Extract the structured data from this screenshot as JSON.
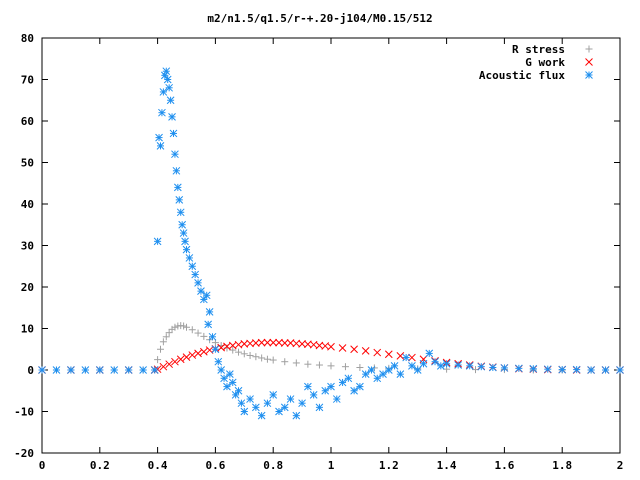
{
  "chart_data": {
    "type": "scatter",
    "title": "m2/n1.5/q1.5/r-+.20-j104/M0.15/512",
    "xlabel": "",
    "ylabel": "",
    "xlim": [
      0,
      2
    ],
    "ylim": [
      -20,
      80
    ],
    "xticks": [
      "0",
      "0.2",
      "0.4",
      "0.6",
      "0.8",
      "1",
      "1.2",
      "1.4",
      "1.6",
      "1.8",
      "2"
    ],
    "yticks": [
      "-20",
      "-10",
      "0",
      "10",
      "20",
      "30",
      "40",
      "50",
      "60",
      "70",
      "80"
    ],
    "grid": false,
    "legend_position": "top-right",
    "series": [
      {
        "name": "R stress",
        "marker": "plus",
        "color": "#a0a0a0",
        "points": [
          [
            0.0,
            0
          ],
          [
            0.05,
            0
          ],
          [
            0.1,
            0
          ],
          [
            0.15,
            0
          ],
          [
            0.2,
            0
          ],
          [
            0.25,
            0
          ],
          [
            0.3,
            0
          ],
          [
            0.35,
            0
          ],
          [
            0.39,
            0
          ],
          [
            0.4,
            2.5
          ],
          [
            0.41,
            5
          ],
          [
            0.42,
            6.8
          ],
          [
            0.43,
            8
          ],
          [
            0.44,
            9
          ],
          [
            0.45,
            9.8
          ],
          [
            0.46,
            10.3
          ],
          [
            0.47,
            10.6
          ],
          [
            0.48,
            10.7
          ],
          [
            0.49,
            10.6
          ],
          [
            0.5,
            10.3
          ],
          [
            0.52,
            9.7
          ],
          [
            0.54,
            8.9
          ],
          [
            0.56,
            8.1
          ],
          [
            0.58,
            7.3
          ],
          [
            0.6,
            6.6
          ],
          [
            0.62,
            5.9
          ],
          [
            0.64,
            5.3
          ],
          [
            0.66,
            4.8
          ],
          [
            0.68,
            4.3
          ],
          [
            0.7,
            3.9
          ],
          [
            0.72,
            3.5
          ],
          [
            0.74,
            3.2
          ],
          [
            0.76,
            2.9
          ],
          [
            0.78,
            2.6
          ],
          [
            0.8,
            2.4
          ],
          [
            0.84,
            2.0
          ],
          [
            0.88,
            1.7
          ],
          [
            0.92,
            1.4
          ],
          [
            0.96,
            1.2
          ],
          [
            1.0,
            1.0
          ],
          [
            1.05,
            0.8
          ],
          [
            1.1,
            0.6
          ],
          [
            1.15,
            0.5
          ],
          [
            1.2,
            0.4
          ],
          [
            1.3,
            0.3
          ],
          [
            1.4,
            0.2
          ],
          [
            1.5,
            0.1
          ],
          [
            1.6,
            0.1
          ],
          [
            1.7,
            0
          ],
          [
            1.8,
            0
          ],
          [
            1.9,
            0
          ],
          [
            2.0,
            0
          ]
        ]
      },
      {
        "name": "G work",
        "marker": "cross",
        "color": "#ff0000",
        "points": [
          [
            0.0,
            0
          ],
          [
            0.1,
            0
          ],
          [
            0.2,
            0
          ],
          [
            0.3,
            0
          ],
          [
            0.39,
            0
          ],
          [
            0.4,
            0.2
          ],
          [
            0.42,
            0.8
          ],
          [
            0.44,
            1.4
          ],
          [
            0.46,
            2.0
          ],
          [
            0.48,
            2.6
          ],
          [
            0.5,
            3.1
          ],
          [
            0.52,
            3.6
          ],
          [
            0.54,
            4.0
          ],
          [
            0.56,
            4.4
          ],
          [
            0.58,
            4.8
          ],
          [
            0.6,
            5.1
          ],
          [
            0.62,
            5.4
          ],
          [
            0.64,
            5.7
          ],
          [
            0.66,
            5.9
          ],
          [
            0.68,
            6.1
          ],
          [
            0.7,
            6.3
          ],
          [
            0.72,
            6.4
          ],
          [
            0.74,
            6.5
          ],
          [
            0.76,
            6.6
          ],
          [
            0.78,
            6.6
          ],
          [
            0.8,
            6.6
          ],
          [
            0.82,
            6.6
          ],
          [
            0.84,
            6.5
          ],
          [
            0.86,
            6.5
          ],
          [
            0.88,
            6.4
          ],
          [
            0.9,
            6.3
          ],
          [
            0.92,
            6.2
          ],
          [
            0.94,
            6.1
          ],
          [
            0.96,
            5.9
          ],
          [
            0.98,
            5.8
          ],
          [
            1.0,
            5.6
          ],
          [
            1.04,
            5.3
          ],
          [
            1.08,
            5.0
          ],
          [
            1.12,
            4.6
          ],
          [
            1.16,
            4.2
          ],
          [
            1.2,
            3.8
          ],
          [
            1.24,
            3.4
          ],
          [
            1.28,
            3.0
          ],
          [
            1.32,
            2.6
          ],
          [
            1.36,
            2.2
          ],
          [
            1.4,
            1.8
          ],
          [
            1.44,
            1.5
          ],
          [
            1.48,
            1.2
          ],
          [
            1.52,
            0.9
          ],
          [
            1.56,
            0.7
          ],
          [
            1.6,
            0.5
          ],
          [
            1.65,
            0.3
          ],
          [
            1.7,
            0.2
          ],
          [
            1.75,
            0.1
          ],
          [
            1.8,
            0.1
          ],
          [
            1.85,
            0
          ],
          [
            1.9,
            0
          ],
          [
            1.95,
            0
          ],
          [
            2.0,
            0
          ]
        ]
      },
      {
        "name": "Acoustic flux",
        "marker": "star",
        "color": "#1e8fef",
        "points": [
          [
            0.0,
            0
          ],
          [
            0.05,
            0
          ],
          [
            0.1,
            0
          ],
          [
            0.15,
            0
          ],
          [
            0.2,
            0
          ],
          [
            0.25,
            0
          ],
          [
            0.3,
            0
          ],
          [
            0.35,
            0
          ],
          [
            0.39,
            0
          ],
          [
            0.4,
            31
          ],
          [
            0.405,
            56
          ],
          [
            0.41,
            54
          ],
          [
            0.415,
            62
          ],
          [
            0.42,
            67
          ],
          [
            0.425,
            71
          ],
          [
            0.43,
            72
          ],
          [
            0.435,
            70
          ],
          [
            0.44,
            68
          ],
          [
            0.445,
            65
          ],
          [
            0.45,
            61
          ],
          [
            0.455,
            57
          ],
          [
            0.46,
            52
          ],
          [
            0.465,
            48
          ],
          [
            0.47,
            44
          ],
          [
            0.475,
            41
          ],
          [
            0.48,
            38
          ],
          [
            0.485,
            35
          ],
          [
            0.49,
            33
          ],
          [
            0.495,
            31
          ],
          [
            0.5,
            29
          ],
          [
            0.51,
            27
          ],
          [
            0.52,
            25
          ],
          [
            0.53,
            23
          ],
          [
            0.54,
            21
          ],
          [
            0.55,
            19
          ],
          [
            0.56,
            17
          ],
          [
            0.57,
            18
          ],
          [
            0.575,
            11
          ],
          [
            0.58,
            14
          ],
          [
            0.59,
            8
          ],
          [
            0.6,
            5
          ],
          [
            0.61,
            2
          ],
          [
            0.62,
            0
          ],
          [
            0.63,
            -2
          ],
          [
            0.64,
            -4
          ],
          [
            0.65,
            -1
          ],
          [
            0.66,
            -3
          ],
          [
            0.67,
            -6
          ],
          [
            0.68,
            -5
          ],
          [
            0.69,
            -8
          ],
          [
            0.7,
            -10
          ],
          [
            0.72,
            -7
          ],
          [
            0.74,
            -9
          ],
          [
            0.76,
            -11
          ],
          [
            0.78,
            -8
          ],
          [
            0.8,
            -6
          ],
          [
            0.82,
            -10
          ],
          [
            0.84,
            -9
          ],
          [
            0.86,
            -7
          ],
          [
            0.88,
            -11
          ],
          [
            0.9,
            -8
          ],
          [
            0.92,
            -4
          ],
          [
            0.94,
            -6
          ],
          [
            0.96,
            -9
          ],
          [
            0.98,
            -5
          ],
          [
            1.0,
            -4
          ],
          [
            1.02,
            -7
          ],
          [
            1.04,
            -3
          ],
          [
            1.06,
            -2
          ],
          [
            1.08,
            -5
          ],
          [
            1.1,
            -4
          ],
          [
            1.12,
            -1
          ],
          [
            1.14,
            0
          ],
          [
            1.16,
            -2
          ],
          [
            1.18,
            -1
          ],
          [
            1.2,
            0
          ],
          [
            1.22,
            1
          ],
          [
            1.24,
            -1
          ],
          [
            1.26,
            3
          ],
          [
            1.28,
            1
          ],
          [
            1.3,
            0
          ],
          [
            1.32,
            1.5
          ],
          [
            1.34,
            4
          ],
          [
            1.36,
            2
          ],
          [
            1.38,
            1
          ],
          [
            1.4,
            1.5
          ],
          [
            1.44,
            1.2
          ],
          [
            1.48,
            1
          ],
          [
            1.52,
            0.8
          ],
          [
            1.56,
            0.6
          ],
          [
            1.6,
            0.5
          ],
          [
            1.65,
            0.4
          ],
          [
            1.7,
            0.3
          ],
          [
            1.75,
            0.2
          ],
          [
            1.8,
            0.1
          ],
          [
            1.85,
            0.1
          ],
          [
            1.9,
            0
          ],
          [
            1.95,
            0
          ],
          [
            2.0,
            0
          ]
        ]
      }
    ]
  }
}
